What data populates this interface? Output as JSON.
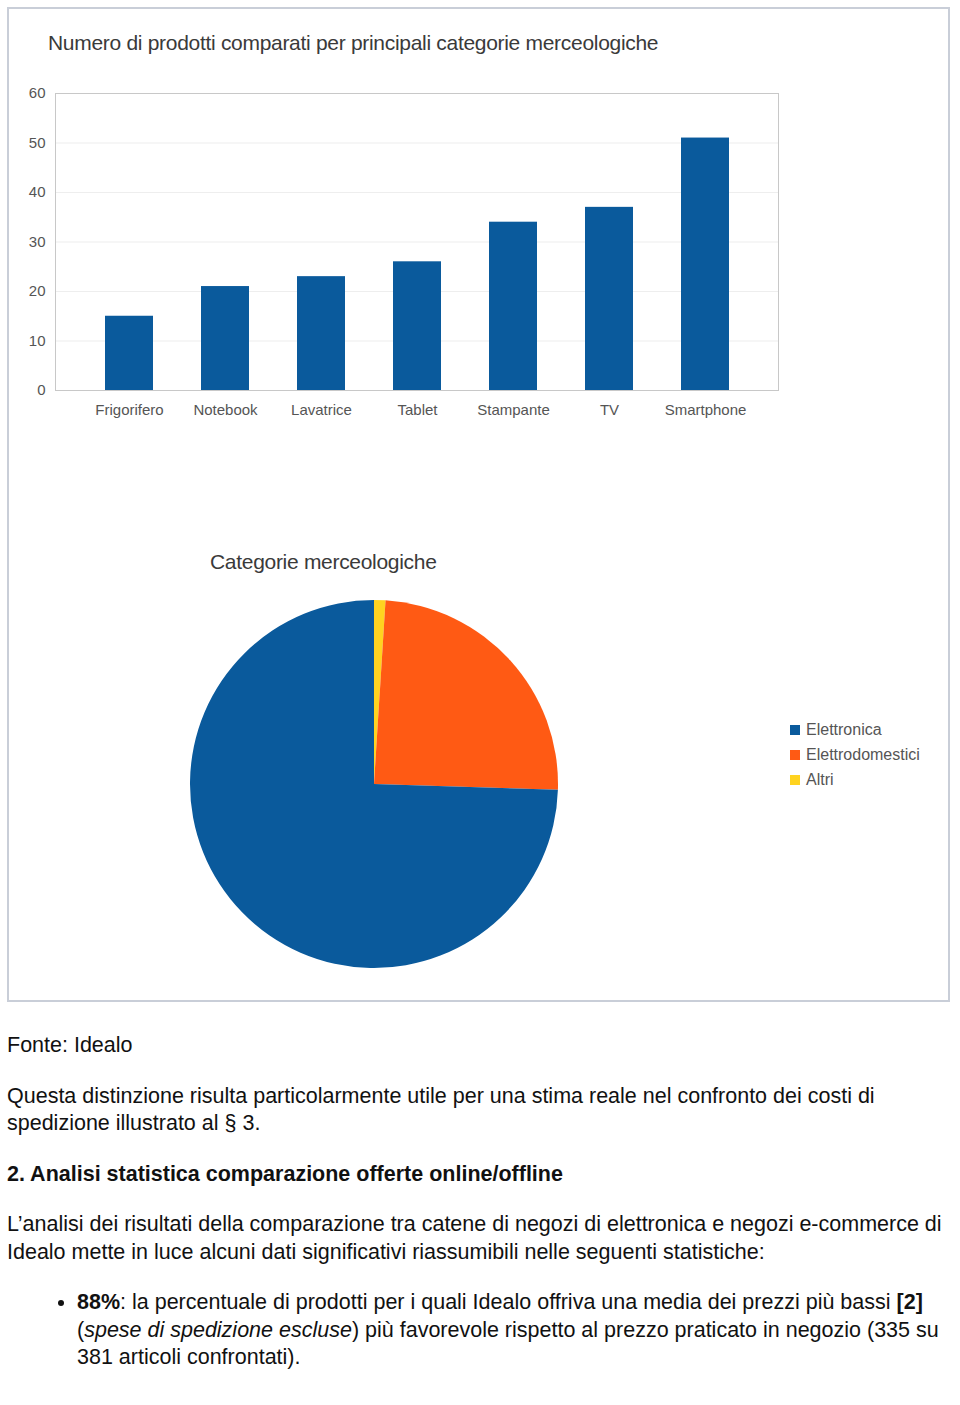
{
  "chart_data": [
    {
      "type": "bar",
      "title": "Numero di prodotti comparati per principali categorie merceologiche",
      "categories": [
        "Frigorifero",
        "Notebook",
        "Lavatrice",
        "Tablet",
        "Stampante",
        "TV",
        "Smartphone"
      ],
      "values": [
        15,
        21,
        23,
        26,
        34,
        37,
        51
      ],
      "color": "#0a5a9c",
      "ylim": [
        0,
        60
      ],
      "yticks": [
        0,
        10,
        20,
        30,
        40,
        50,
        60
      ],
      "grid": true
    },
    {
      "type": "pie",
      "title": "Categorie merceologiche",
      "categories": [
        "Elettronica",
        "Elettrodomestici",
        "Altri"
      ],
      "values": [
        74.5,
        24.5,
        1
      ],
      "colors": [
        "#0a5a9c",
        "#ff5a14",
        "#ffd320"
      ],
      "legend": "right"
    }
  ],
  "document": {
    "source": "Fonte: Idealo",
    "paragraph_1": "Questa distinzione risulta particolarmente utile per una stima reale nel confronto dei costi di spedizione illustrato al § 3.",
    "heading": "2. Analisi statistica comparazione offerte online/offline",
    "paragraph_2": "L’analisi dei risultati della comparazione tra catene di negozi di elettronica e negozi e-commerce di Idealo mette in luce alcuni dati significativi riassumibili nelle seguenti statistiche:",
    "bullets": [
      [
        {
          "text": "88%",
          "style": "bold"
        },
        {
          "text": ": la percentuale di prodotti per i quali Idealo offriva una media dei prezzi più bassi "
        },
        {
          "text": "[2]",
          "style": "bold"
        },
        {
          "text": " ("
        },
        {
          "text": "spese di spedizione escluse",
          "style": "italic"
        },
        {
          "text": ") più favorevole rispetto al prezzo praticato in negozio (335 su 381 articoli confrontati)."
        }
      ]
    ]
  }
}
